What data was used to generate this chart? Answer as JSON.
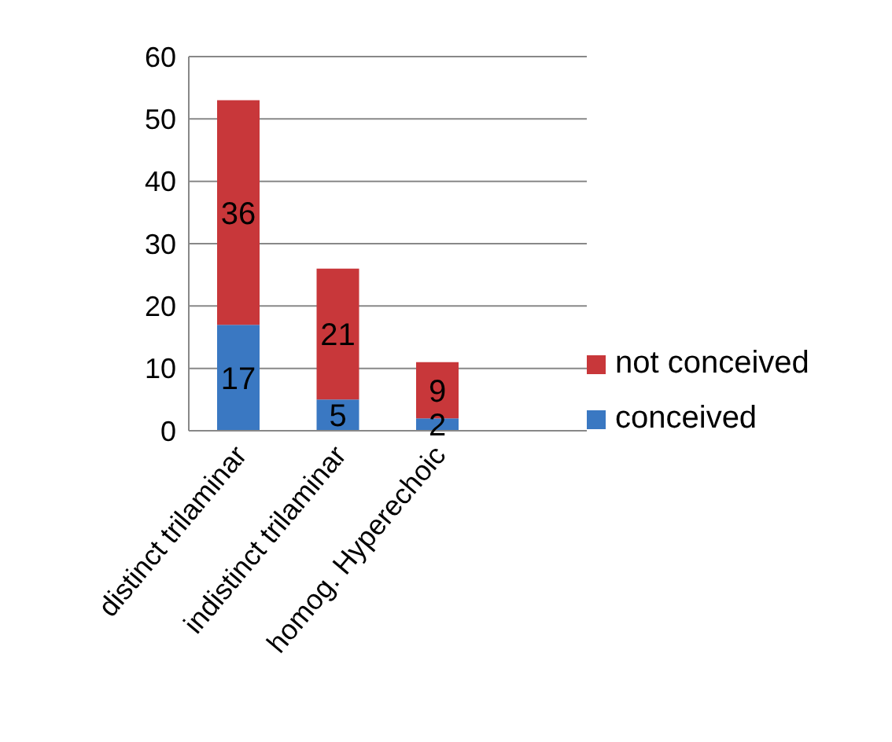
{
  "chart_data": {
    "type": "bar",
    "stacked": true,
    "categories": [
      "distinct trilaminar",
      "indistinct trilaminar",
      "homog. Hyperechoic",
      null
    ],
    "series": [
      {
        "name": "conceived",
        "color": "#3a78c2",
        "values": [
          17,
          5,
          2,
          null
        ]
      },
      {
        "name": "not conceived",
        "color": "#c8373a",
        "values": [
          36,
          21,
          9,
          null
        ]
      }
    ],
    "ylim": [
      0,
      60
    ],
    "yticks": [
      0,
      10,
      20,
      30,
      40,
      50,
      60
    ],
    "grid": "y",
    "legend": "right",
    "data_labels": true
  }
}
